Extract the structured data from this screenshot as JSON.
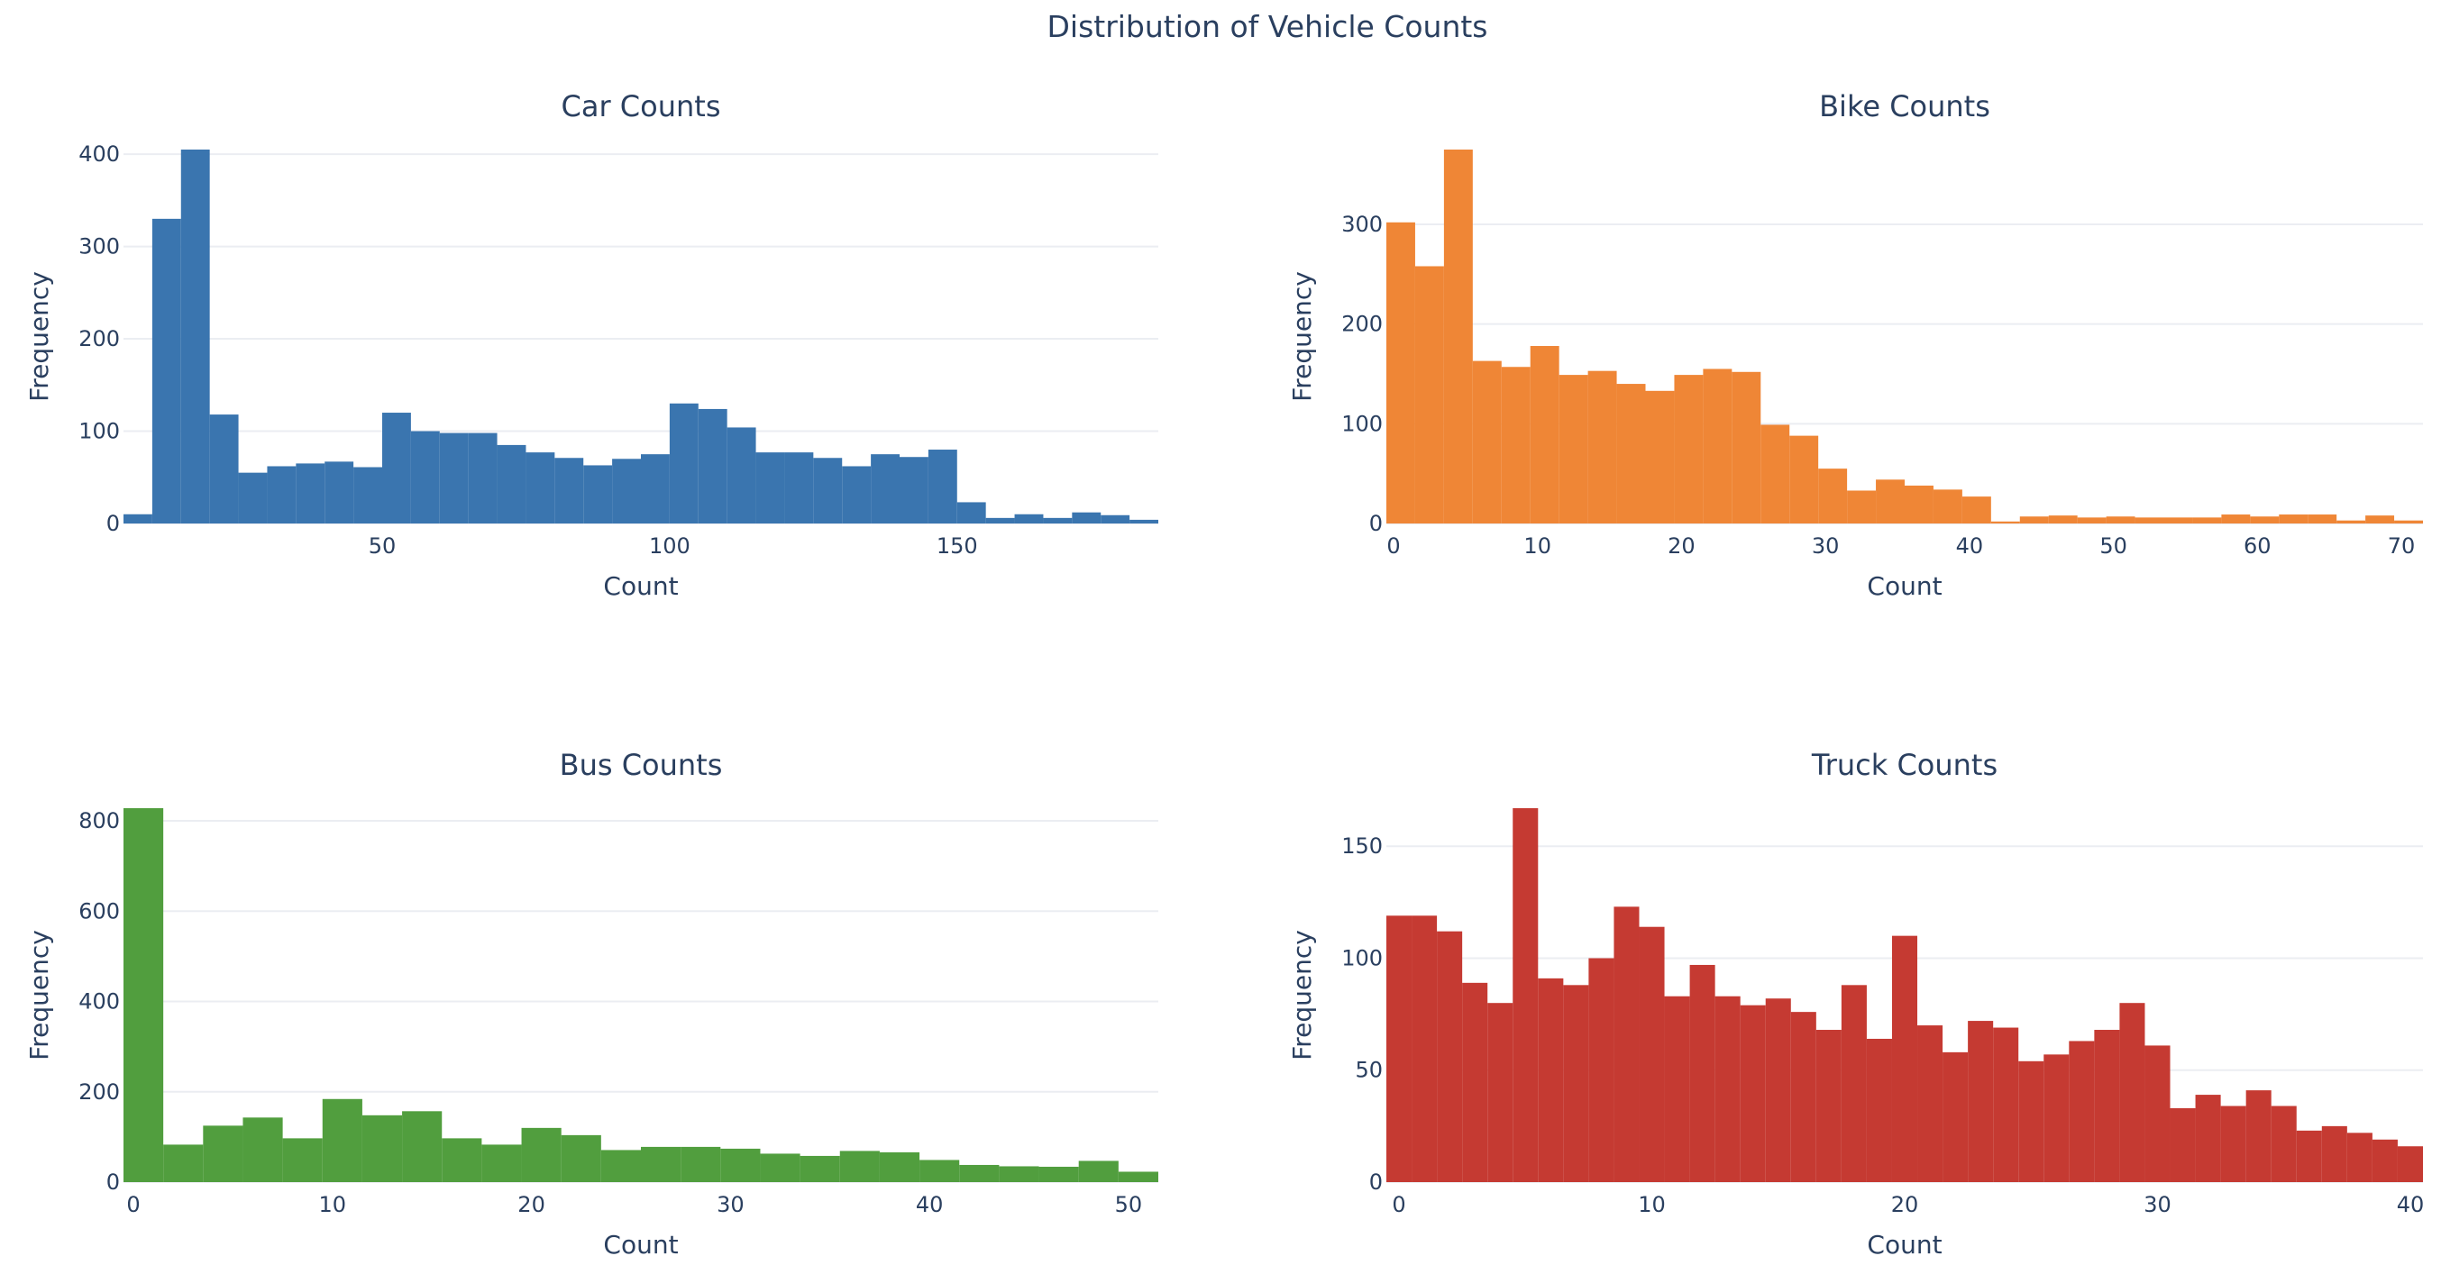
{
  "figure": {
    "title": "Distribution of Vehicle Counts"
  },
  "chart_data": [
    {
      "type": "bar",
      "title": "Car Counts",
      "xlabel": "Count",
      "ylabel": "Frequency",
      "color": "#3a75af",
      "xlim": [
        5,
        185
      ],
      "ylim": [
        0,
        405
      ],
      "x_ticks": [
        50,
        100,
        150
      ],
      "y_ticks": [
        0,
        100,
        200,
        300,
        400
      ],
      "grid": true,
      "bin_start": 5,
      "bin_width": 5,
      "values": [
        10,
        330,
        405,
        118,
        55,
        62,
        65,
        67,
        61,
        120,
        100,
        98,
        98,
        85,
        77,
        71,
        63,
        70,
        75,
        130,
        124,
        104,
        77,
        77,
        71,
        62,
        75,
        72,
        80,
        23,
        6,
        10,
        6,
        12,
        9,
        4
      ]
    },
    {
      "type": "bar",
      "title": "Bike Counts",
      "xlabel": "Count",
      "ylabel": "Frequency",
      "color": "#ef8636",
      "xlim": [
        -0.5,
        71.5
      ],
      "ylim": [
        0,
        375
      ],
      "x_ticks": [
        0,
        10,
        20,
        30,
        40,
        50,
        60,
        70
      ],
      "y_ticks": [
        0,
        100,
        200,
        300
      ],
      "grid": true,
      "bin_start": -0.5,
      "bin_width": 2,
      "values": [
        302,
        258,
        375,
        163,
        157,
        178,
        149,
        153,
        140,
        133,
        149,
        155,
        152,
        99,
        88,
        55,
        33,
        44,
        38,
        34,
        27,
        2,
        7,
        8,
        6,
        7,
        6,
        6,
        6,
        9,
        7,
        9,
        9,
        3,
        8,
        3
      ]
    },
    {
      "type": "bar",
      "title": "Bus Counts",
      "xlabel": "Count",
      "ylabel": "Frequency",
      "color": "#519e3e",
      "xlim": [
        -0.5,
        51.5
      ],
      "ylim": [
        0,
        828
      ],
      "x_ticks": [
        0,
        10,
        20,
        30,
        40,
        50
      ],
      "y_ticks": [
        0,
        200,
        400,
        600,
        800
      ],
      "grid": true,
      "bin_start": -0.5,
      "bin_width": 2,
      "values": [
        828,
        83,
        125,
        143,
        97,
        184,
        148,
        157,
        97,
        83,
        120,
        104,
        71,
        78,
        78,
        74,
        63,
        58,
        69,
        66,
        49,
        38,
        35,
        34,
        47,
        23
      ]
    },
    {
      "type": "bar",
      "title": "Truck Counts",
      "xlabel": "Count",
      "ylabel": "Frequency",
      "color": "#c53a32",
      "xlim": [
        -0.5,
        40.5
      ],
      "ylim": [
        0,
        167
      ],
      "x_ticks": [
        0,
        10,
        20,
        30,
        40
      ],
      "y_ticks": [
        0,
        50,
        100,
        150
      ],
      "grid": true,
      "bin_start": -0.5,
      "bin_width": 1,
      "values": [
        119,
        119,
        112,
        89,
        80,
        167,
        91,
        88,
        100,
        123,
        114,
        83,
        97,
        83,
        79,
        82,
        76,
        68,
        88,
        64,
        110,
        70,
        58,
        72,
        69,
        54,
        57,
        63,
        68,
        80,
        61,
        33,
        39,
        34,
        41,
        34,
        23,
        25,
        22,
        19,
        16
      ]
    }
  ]
}
